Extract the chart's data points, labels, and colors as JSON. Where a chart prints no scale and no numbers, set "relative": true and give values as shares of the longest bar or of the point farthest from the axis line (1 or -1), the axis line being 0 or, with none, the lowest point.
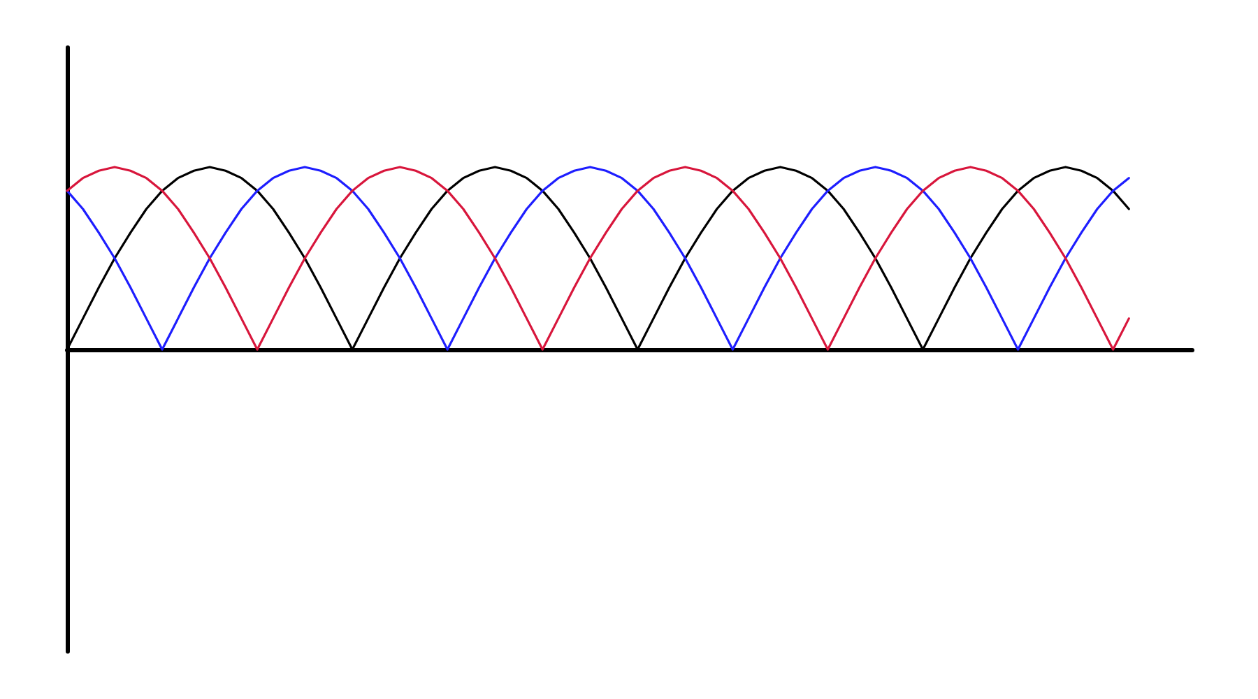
{
  "chart_data": {
    "type": "line",
    "relative": true,
    "categories": [
      null,
      null,
      null,
      null,
      null,
      null,
      null,
      null,
      null,
      null,
      null,
      null,
      null,
      null,
      null,
      null,
      null,
      null,
      null,
      null,
      null,
      null,
      null,
      null,
      null,
      null,
      null,
      null,
      null,
      null,
      null,
      null,
      null,
      null,
      null,
      null,
      null,
      null,
      null,
      null,
      null,
      null,
      null,
      null,
      null,
      null,
      null,
      null,
      null,
      null,
      null,
      null,
      null,
      null,
      null,
      null,
      null,
      null,
      null,
      null,
      null,
      null,
      null,
      null,
      null,
      null,
      null,
      null,
      null,
      null,
      null,
      null
    ],
    "series": [
      {
        "color": "#000000",
        "values": [
          0,
          0.17,
          0.34,
          0.5,
          0.64,
          0.77,
          0.87,
          0.94,
          0.98,
          1,
          0.98,
          0.94,
          0.87,
          0.77,
          0.64,
          0.5,
          0.34,
          0.17,
          0,
          0.17,
          0.34,
          0.5,
          0.64,
          0.77,
          0.87,
          0.94,
          0.98,
          1,
          0.98,
          0.94,
          0.87,
          0.77,
          0.64,
          0.5,
          0.34,
          0.17,
          0,
          0.17,
          0.34,
          0.5,
          0.64,
          0.77,
          0.87,
          0.94,
          0.98,
          1,
          0.98,
          0.94,
          0.87,
          0.77,
          0.64,
          0.5,
          0.34,
          0.17,
          0,
          0.17,
          0.34,
          0.5,
          0.64,
          0.77,
          0.87,
          0.94,
          0.98,
          1,
          0.98,
          0.94,
          0.87,
          0.77,
          null,
          null,
          null,
          null
        ]
      },
      {
        "color": "#1e1eff",
        "values": [
          0.87,
          0.77,
          0.64,
          0.5,
          0.34,
          0.17,
          0,
          0.17,
          0.34,
          0.5,
          0.64,
          0.77,
          0.87,
          0.94,
          0.98,
          1,
          0.98,
          0.94,
          0.87,
          0.77,
          0.64,
          0.5,
          0.34,
          0.17,
          0,
          0.17,
          0.34,
          0.5,
          0.64,
          0.77,
          0.87,
          0.94,
          0.98,
          1,
          0.98,
          0.94,
          0.87,
          0.77,
          0.64,
          0.5,
          0.34,
          0.17,
          0,
          0.17,
          0.34,
          0.5,
          0.64,
          0.77,
          0.87,
          0.94,
          0.98,
          1,
          0.98,
          0.94,
          0.87,
          0.77,
          0.64,
          0.5,
          0.34,
          0.17,
          0,
          0.17,
          0.34,
          0.5,
          0.64,
          0.77,
          0.87,
          0.94,
          null,
          null,
          null,
          null
        ]
      },
      {
        "color": "#d8163c",
        "values": [
          0.87,
          0.94,
          0.98,
          1,
          0.98,
          0.94,
          0.87,
          0.77,
          0.64,
          0.5,
          0.34,
          0.17,
          0,
          0.17,
          0.34,
          0.5,
          0.64,
          0.77,
          0.87,
          0.94,
          0.98,
          1,
          0.98,
          0.94,
          0.87,
          0.77,
          0.64,
          0.5,
          0.34,
          0.17,
          0,
          0.17,
          0.34,
          0.5,
          0.64,
          0.77,
          0.87,
          0.94,
          0.98,
          1,
          0.98,
          0.94,
          0.87,
          0.77,
          0.64,
          0.5,
          0.34,
          0.17,
          0,
          0.17,
          0.34,
          0.5,
          0.64,
          0.77,
          0.87,
          0.94,
          0.98,
          1,
          0.98,
          0.94,
          0.87,
          0.77,
          0.64,
          0.5,
          0.34,
          0.17,
          0,
          0.17,
          null,
          null,
          null,
          null
        ]
      }
    ]
  }
}
